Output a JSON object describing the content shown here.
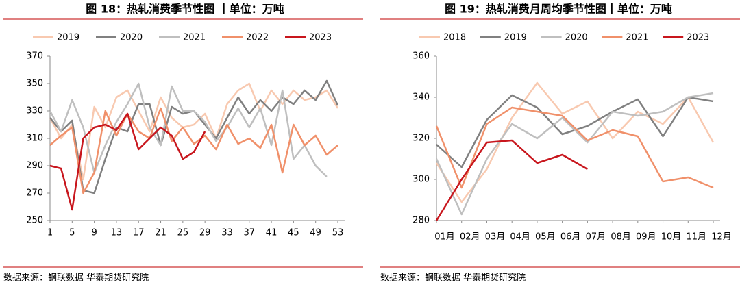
{
  "chart_data": [
    {
      "type": "line",
      "title": "图 18：热轧消费季节性图 丨单位：万吨",
      "source": "数据来源：钢联数据 华泰期货研究院",
      "x": [
        1,
        3,
        5,
        7,
        9,
        11,
        13,
        15,
        17,
        19,
        21,
        23,
        25,
        27,
        29,
        31,
        33,
        35,
        37,
        39,
        41,
        43,
        45,
        47,
        49,
        51,
        53
      ],
      "xlim": [
        1,
        53
      ],
      "xticks": [
        1,
        5,
        9,
        13,
        17,
        21,
        25,
        29,
        33,
        37,
        41,
        45,
        49,
        53
      ],
      "ylim": [
        250,
        370
      ],
      "yticks": [
        250,
        270,
        290,
        310,
        330,
        350,
        370
      ],
      "series": [
        {
          "name": "2019",
          "color": "#f8c9b0",
          "values": [
            325,
            310,
            320,
            280,
            333,
            318,
            340,
            345,
            330,
            315,
            340,
            325,
            318,
            320,
            328,
            310,
            335,
            345,
            350,
            330,
            345,
            335,
            345,
            338,
            340,
            345,
            332
          ]
        },
        {
          "name": "2020",
          "color": "#808080",
          "values": [
            325,
            315,
            323,
            272,
            270,
            295,
            318,
            315,
            335,
            335,
            305,
            333,
            328,
            330,
            320,
            310,
            325,
            340,
            328,
            338,
            330,
            340,
            335,
            345,
            338,
            352,
            334
          ]
        },
        {
          "name": "2021",
          "color": "#bfbfbf",
          "values": [
            330,
            315,
            338,
            318,
            285,
            305,
            322,
            335,
            350,
            318,
            305,
            348,
            330,
            330,
            322,
            308,
            318,
            332,
            318,
            332,
            305,
            345,
            295,
            305,
            290,
            282,
            null
          ]
        },
        {
          "name": "2022",
          "color": "#f0906a",
          "values": [
            305,
            312,
            318,
            270,
            285,
            330,
            312,
            328,
            315,
            310,
            332,
            308,
            318,
            306,
            312,
            302,
            320,
            306,
            310,
            303,
            320,
            285,
            320,
            305,
            312,
            298,
            305
          ]
        },
        {
          "name": "2023",
          "color": "#c8161d",
          "values": [
            290,
            288,
            258,
            310,
            318,
            320,
            316,
            328,
            302,
            310,
            318,
            312,
            295,
            300,
            315,
            null,
            null,
            null,
            null,
            null,
            null,
            null,
            null,
            null,
            null,
            null,
            null
          ]
        }
      ]
    },
    {
      "type": "line",
      "title": "图 19：热轧消费月周均季节性图丨单位：万吨",
      "source": "数据来源：钢联数据 华泰期货研究院",
      "categories": [
        "01月",
        "02月",
        "03月",
        "04月",
        "05月",
        "06月",
        "07月",
        "08月",
        "09月",
        "10月",
        "11月",
        "12月"
      ],
      "ylim": [
        280,
        360
      ],
      "yticks": [
        280,
        300,
        320,
        340,
        360
      ],
      "series": [
        {
          "name": "2018",
          "color": "#f8c9b0",
          "values": [
            308,
            289,
            305,
            330,
            347,
            332,
            338,
            320,
            333,
            327,
            340,
            318
          ]
        },
        {
          "name": "2019",
          "color": "#808080",
          "values": [
            317,
            306,
            329,
            341,
            335,
            322,
            326,
            333,
            339,
            321,
            340,
            338
          ]
        },
        {
          "name": "2020",
          "color": "#bfbfbf",
          "values": [
            310,
            283,
            310,
            327,
            320,
            330,
            318,
            333,
            331,
            333,
            340,
            342
          ]
        },
        {
          "name": "2021",
          "color": "#f0906a",
          "values": [
            326,
            296,
            327,
            335,
            333,
            331,
            319,
            324,
            321,
            299,
            301,
            296
          ]
        },
        {
          "name": "2023",
          "color": "#c8161d",
          "values": [
            280,
            300,
            318,
            319,
            308,
            312,
            305,
            null,
            null,
            null,
            null,
            null
          ]
        }
      ]
    }
  ]
}
